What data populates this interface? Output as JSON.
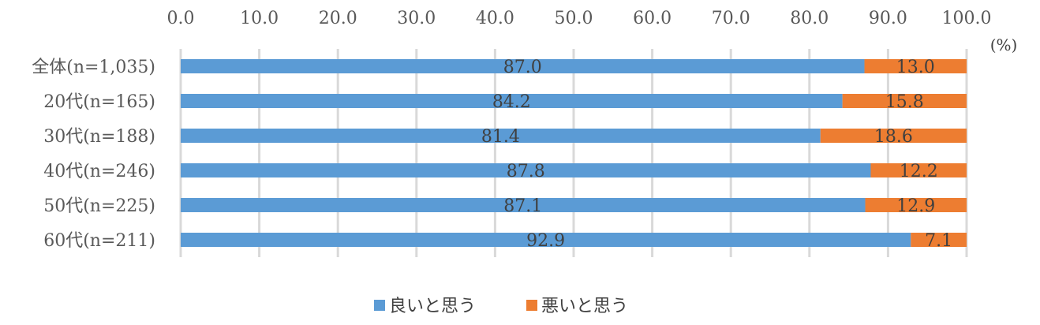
{
  "chart_data": {
    "type": "bar",
    "orientation": "horizontal",
    "stacked": true,
    "categories": [
      "全体(n=1,035)",
      "20代(n=165)",
      "30代(n=188)",
      "40代(n=246)",
      "50代(n=225)",
      "60代(n=211)"
    ],
    "series": [
      {
        "name": "良いと思う",
        "values": [
          87.0,
          84.2,
          81.4,
          87.8,
          87.1,
          92.9
        ],
        "color": "#5b9bd5"
      },
      {
        "name": "悪いと思う",
        "values": [
          13.0,
          15.8,
          18.6,
          12.2,
          12.9,
          7.1
        ],
        "color": "#ed7d31"
      }
    ],
    "x_ticks": [
      "0.0",
      "10.0",
      "20.0",
      "30.0",
      "40.0",
      "50.0",
      "60.0",
      "70.0",
      "80.0",
      "90.0",
      "100.0"
    ],
    "xlim": [
      0,
      100
    ],
    "unit": "(%)",
    "grid": true,
    "legend_position": "bottom",
    "axis_position": "top"
  }
}
